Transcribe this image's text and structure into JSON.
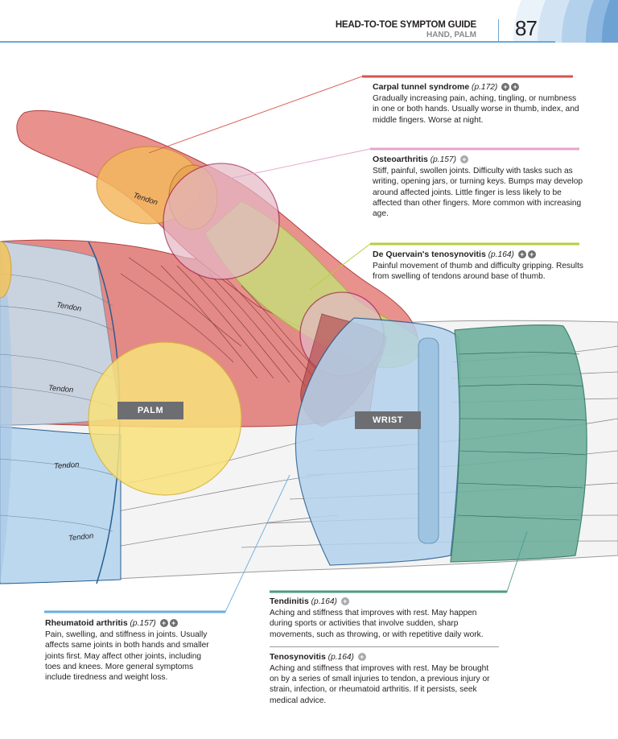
{
  "header": {
    "guide_title": "HEAD-TO-TOE SYMPTOM GUIDE",
    "section": "HAND, PALM",
    "page_number": "87"
  },
  "labels": {
    "palm": "PALM",
    "wrist": "WRIST",
    "tendon": "Tendon"
  },
  "conditions": {
    "carpal": {
      "title": "Carpal tunnel syndrome",
      "page_ref": "(p.172)",
      "description": "Gradually increasing pain, aching, tingling, or numbness in one or both hands. Usually worse in thumb, index, and middle fingers. Worse at night.",
      "color": "#d9534f"
    },
    "osteo": {
      "title": "Osteoarthritis",
      "page_ref": "(p.157)",
      "description": "Stiff, painful, swollen joints. Difficulty with tasks such as writing, opening jars, or turning keys. Bumps may develop around affected joints. Little finger is less likely to be affected than other fingers. More common with increasing age.",
      "color": "#e3a6c9"
    },
    "dequervain": {
      "title": "De Quervain's tenosynovitis",
      "page_ref": "(p.164)",
      "description": "Painful movement of thumb and difficulty gripping. Results from swelling of tendons around base of thumb.",
      "color": "#b5cf3d"
    },
    "rheumatoid": {
      "title": "Rheumatoid arthritis",
      "page_ref": "(p.157)",
      "description": "Pain, swelling, and stiffness in joints. Usually affects same joints in both hands and smaller joints first. May affect other joints, including toes and knees. More general symptoms include tiredness and weight loss.",
      "color": "#6aaedf"
    },
    "tendinitis": {
      "title": "Tendinitis",
      "page_ref": "(p.164)",
      "description": "Aching and stiffness that improves with rest. May happen during sports or activities that involve sudden, sharp movements, such as throwing, or with repetitive daily work.",
      "color": "#4c9a86"
    },
    "tenosynovitis": {
      "title": "Tenosynovitis",
      "page_ref": "(p.164)",
      "description": "Aching and stiffness that improves with rest. May be brought on by a series of small injuries to tendon, a previous injury or strain, infection, or rheumatoid arthritis. If it persists, seek medical advice."
    }
  }
}
